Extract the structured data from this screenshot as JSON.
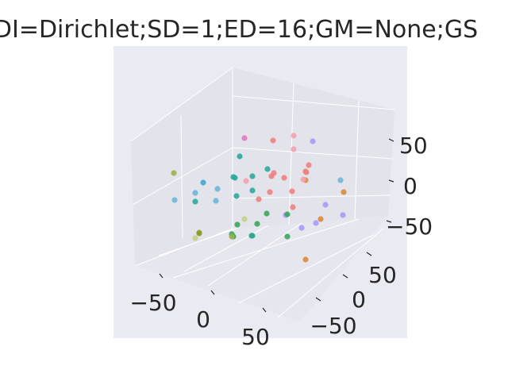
{
  "chart_data": {
    "type": "scatter",
    "projection": "3d",
    "title": "DI=Dirichlet;SD=1;ED=16;GM=None;GS",
    "xlabel": "",
    "ylabel": "",
    "zlabel": "",
    "x_ticks": [
      "−50",
      "0",
      "50"
    ],
    "y_ticks": [
      "−50",
      "0",
      "50"
    ],
    "z_ticks": [
      "−50",
      "0",
      "50"
    ],
    "grid": true,
    "background": "#eaeaf2",
    "points": [
      {
        "color": "#e377c2",
        "label": ""
      },
      {
        "color": "#f08080",
        "label": ""
      },
      {
        "color": "#f4a1b4",
        "label": ""
      },
      {
        "color": "#f4a1b4",
        "label": ""
      },
      {
        "color": "#a29bfe",
        "label": ""
      },
      {
        "color": "#9fb04c",
        "label": ""
      },
      {
        "color": "#2ea89b",
        "label": ""
      },
      {
        "color": "#2ea89b",
        "label": ""
      },
      {
        "color": "#2ea89b",
        "label": ""
      },
      {
        "color": "#e88080",
        "label": ""
      },
      {
        "color": "#f08080",
        "label": ""
      },
      {
        "color": "#f08080",
        "label": ""
      },
      {
        "color": "#f08080",
        "label": ""
      },
      {
        "color": "#d98b3a",
        "label": ""
      },
      {
        "color": "#3fa9c9",
        "label": ""
      },
      {
        "color": "#2ea89b",
        "label": ""
      },
      {
        "color": "#2ea89b",
        "label": ""
      },
      {
        "color": "#f4a1b4",
        "label": ""
      },
      {
        "color": "#6db6d6",
        "label": ""
      },
      {
        "color": "#6db6d6",
        "label": ""
      },
      {
        "color": "#6db6d6",
        "label": ""
      },
      {
        "color": "#2ea89b",
        "label": ""
      },
      {
        "color": "#2ea89b",
        "label": ""
      },
      {
        "color": "#f08080",
        "label": ""
      },
      {
        "color": "#f08080",
        "label": ""
      },
      {
        "color": "#f4a1b4",
        "label": ""
      },
      {
        "color": "#f08080",
        "label": ""
      },
      {
        "color": "#f08080",
        "label": ""
      },
      {
        "color": "#6db6d6",
        "label": ""
      },
      {
        "color": "#d98b3a",
        "label": ""
      },
      {
        "color": "#6db6d6",
        "label": ""
      },
      {
        "color": "#f08080",
        "label": ""
      },
      {
        "color": "#a29bfe",
        "label": ""
      },
      {
        "color": "#2ea89b",
        "label": ""
      },
      {
        "color": "#3ba55c",
        "label": ""
      },
      {
        "color": "#a29bfe",
        "label": ""
      },
      {
        "color": "#d98b3a",
        "label": ""
      },
      {
        "color": "#a29bfe",
        "label": ""
      },
      {
        "color": "#c3cf8a",
        "label": ""
      },
      {
        "color": "#3ba55c",
        "label": ""
      },
      {
        "color": "#3ba55c",
        "label": ""
      },
      {
        "color": "#a29bfe",
        "label": ""
      },
      {
        "color": "#3ba55c",
        "label": ""
      },
      {
        "color": "#9fb04c",
        "label": ""
      },
      {
        "color": "#3ba55c",
        "label": ""
      },
      {
        "color": "#8a9a2a",
        "label": ""
      },
      {
        "color": "#3ba55c",
        "label": ""
      },
      {
        "color": "#c3cf8a",
        "label": ""
      },
      {
        "color": "#3ba55c",
        "label": ""
      },
      {
        "color": "#a29bfe",
        "label": ""
      },
      {
        "color": "#d98b3a",
        "label": ""
      },
      {
        "color": "#f08080",
        "label": ""
      },
      {
        "color": "#2ea89b",
        "label": ""
      },
      {
        "color": "#3ba55c",
        "label": ""
      },
      {
        "color": "#9fb04c",
        "label": ""
      }
    ]
  }
}
